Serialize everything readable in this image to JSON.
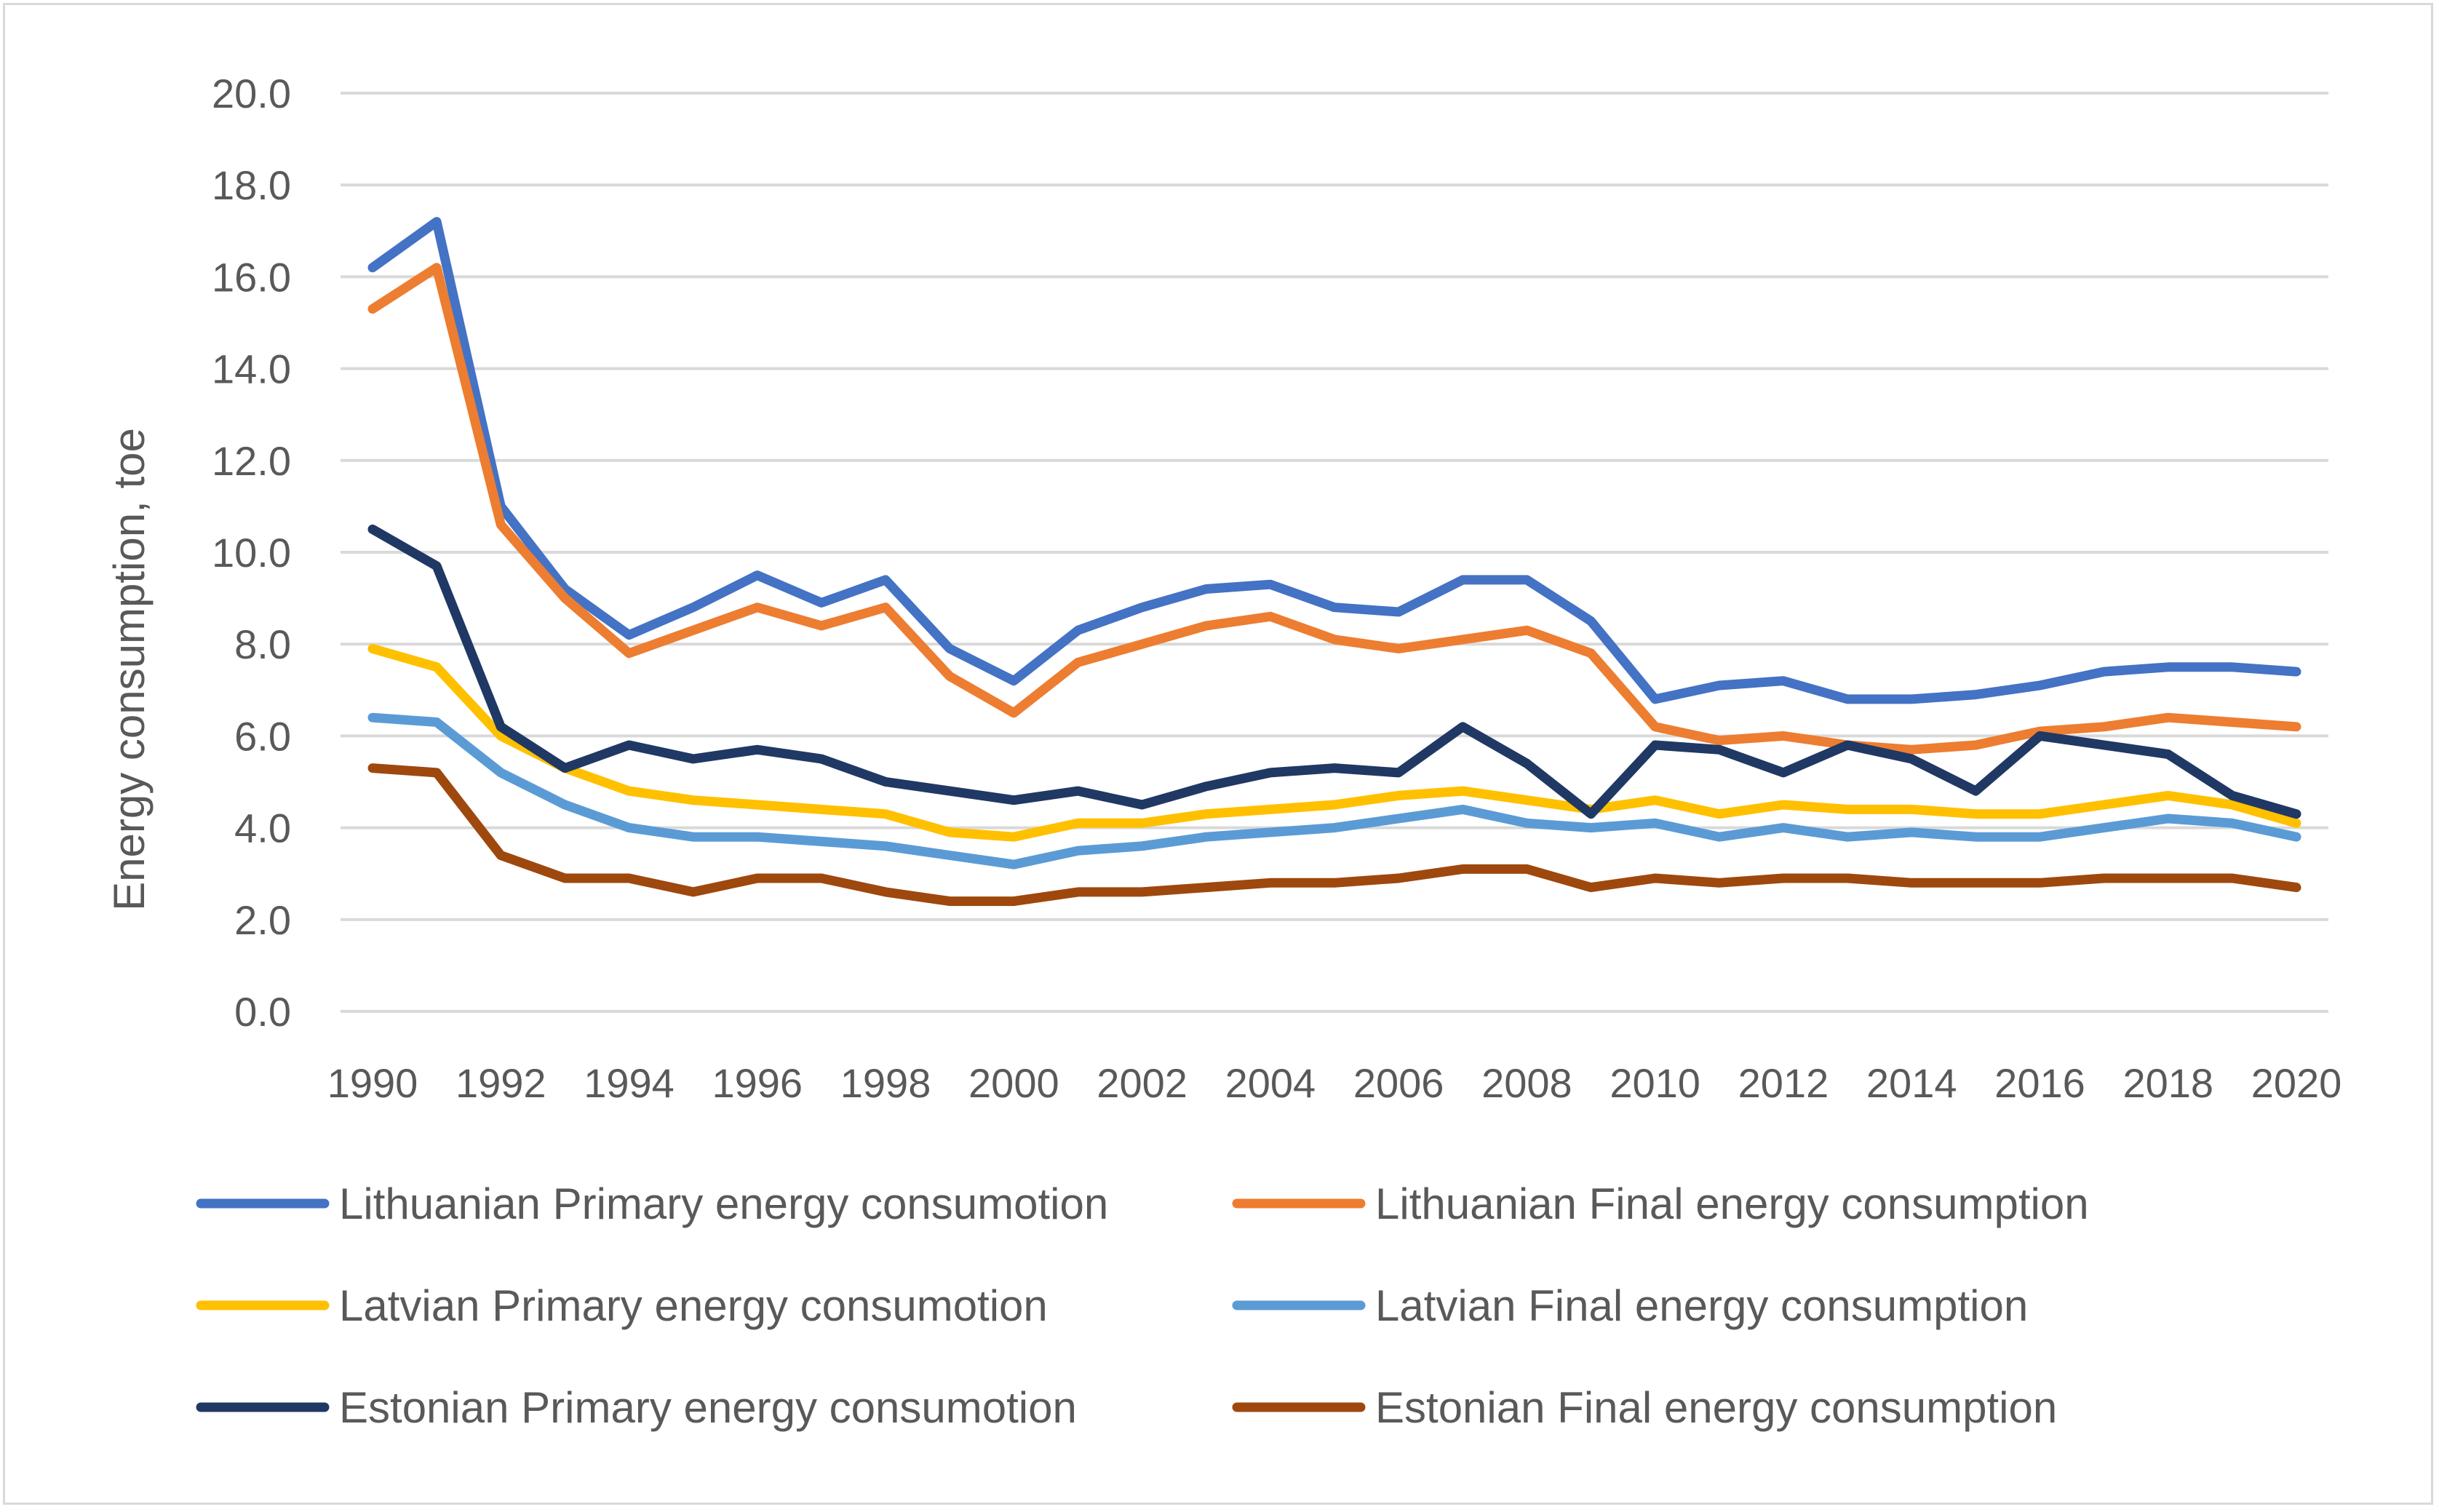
{
  "chart_data": {
    "type": "line",
    "title": "",
    "xlabel": "",
    "ylabel": "Energy consumption, toe",
    "ylim": [
      0,
      20
    ],
    "ytick_step": 2,
    "ytick_labels": [
      "0.0",
      "2.0",
      "4.0",
      "6.0",
      "8.0",
      "10.0",
      "12.0",
      "14.0",
      "16.0",
      "18.0",
      "20.0"
    ],
    "grid": true,
    "legend_position": "bottom",
    "x": [
      1990,
      1991,
      1992,
      1993,
      1994,
      1995,
      1996,
      1997,
      1998,
      1999,
      2000,
      2001,
      2002,
      2003,
      2004,
      2005,
      2006,
      2007,
      2008,
      2009,
      2010,
      2011,
      2012,
      2013,
      2014,
      2015,
      2016,
      2017,
      2018,
      2019,
      2020
    ],
    "xtick_labels": [
      "1990",
      "1992",
      "1994",
      "1996",
      "1998",
      "2000",
      "2002",
      "2004",
      "2006",
      "2008",
      "2010",
      "2012",
      "2014",
      "2016",
      "2018",
      "2020"
    ],
    "series": [
      {
        "name": "Lithuanian Primary energy consumotion",
        "color": "#4472C4",
        "values": [
          16.2,
          17.2,
          11.0,
          9.2,
          8.2,
          8.8,
          9.5,
          8.9,
          9.4,
          7.9,
          7.2,
          8.3,
          8.8,
          9.2,
          9.3,
          8.8,
          8.7,
          9.4,
          9.4,
          8.5,
          6.8,
          7.1,
          7.2,
          6.8,
          6.8,
          6.9,
          7.1,
          7.4,
          7.5,
          7.5,
          7.4
        ]
      },
      {
        "name": "Lithuanian Final energy consumption",
        "color": "#ED7D31",
        "values": [
          15.3,
          16.2,
          10.6,
          9.0,
          7.8,
          8.3,
          8.8,
          8.4,
          8.8,
          7.3,
          6.5,
          7.6,
          8.0,
          8.4,
          8.6,
          8.1,
          7.9,
          8.1,
          8.3,
          7.8,
          6.2,
          5.9,
          6.0,
          5.8,
          5.7,
          5.8,
          6.1,
          6.2,
          6.4,
          6.3,
          6.2
        ]
      },
      {
        "name": "Latvian Primary energy consumotion",
        "color": "#FFC000",
        "values": [
          7.9,
          7.5,
          6.0,
          5.3,
          4.8,
          4.6,
          4.5,
          4.4,
          4.3,
          3.9,
          3.8,
          4.1,
          4.1,
          4.3,
          4.4,
          4.5,
          4.7,
          4.8,
          4.6,
          4.4,
          4.6,
          4.3,
          4.5,
          4.4,
          4.4,
          4.3,
          4.3,
          4.5,
          4.7,
          4.5,
          4.1
        ]
      },
      {
        "name": "Latvian Final energy consumption",
        "color": "#5B9BD5",
        "values": [
          6.4,
          6.3,
          5.2,
          4.5,
          4.0,
          3.8,
          3.8,
          3.7,
          3.6,
          3.4,
          3.2,
          3.5,
          3.6,
          3.8,
          3.9,
          4.0,
          4.2,
          4.4,
          4.1,
          4.0,
          4.1,
          3.8,
          4.0,
          3.8,
          3.9,
          3.8,
          3.8,
          4.0,
          4.2,
          4.1,
          3.8
        ]
      },
      {
        "name": "Estonian Primary energy consumotion",
        "color": "#203864",
        "values": [
          10.5,
          9.7,
          6.2,
          5.3,
          5.8,
          5.5,
          5.7,
          5.5,
          5.0,
          4.8,
          4.6,
          4.8,
          4.5,
          4.9,
          5.2,
          5.3,
          5.2,
          6.2,
          5.4,
          4.3,
          5.8,
          5.7,
          5.2,
          5.8,
          5.5,
          4.8,
          6.0,
          5.8,
          5.6,
          4.7,
          4.3
        ]
      },
      {
        "name": "Estonian Final energy consumption",
        "color": "#9E480E",
        "values": [
          5.3,
          5.2,
          3.4,
          2.9,
          2.9,
          2.6,
          2.9,
          2.9,
          2.6,
          2.4,
          2.4,
          2.6,
          2.6,
          2.7,
          2.8,
          2.8,
          2.9,
          3.1,
          3.1,
          2.7,
          2.9,
          2.8,
          2.9,
          2.9,
          2.8,
          2.8,
          2.8,
          2.9,
          2.9,
          2.9,
          2.7
        ]
      }
    ]
  }
}
